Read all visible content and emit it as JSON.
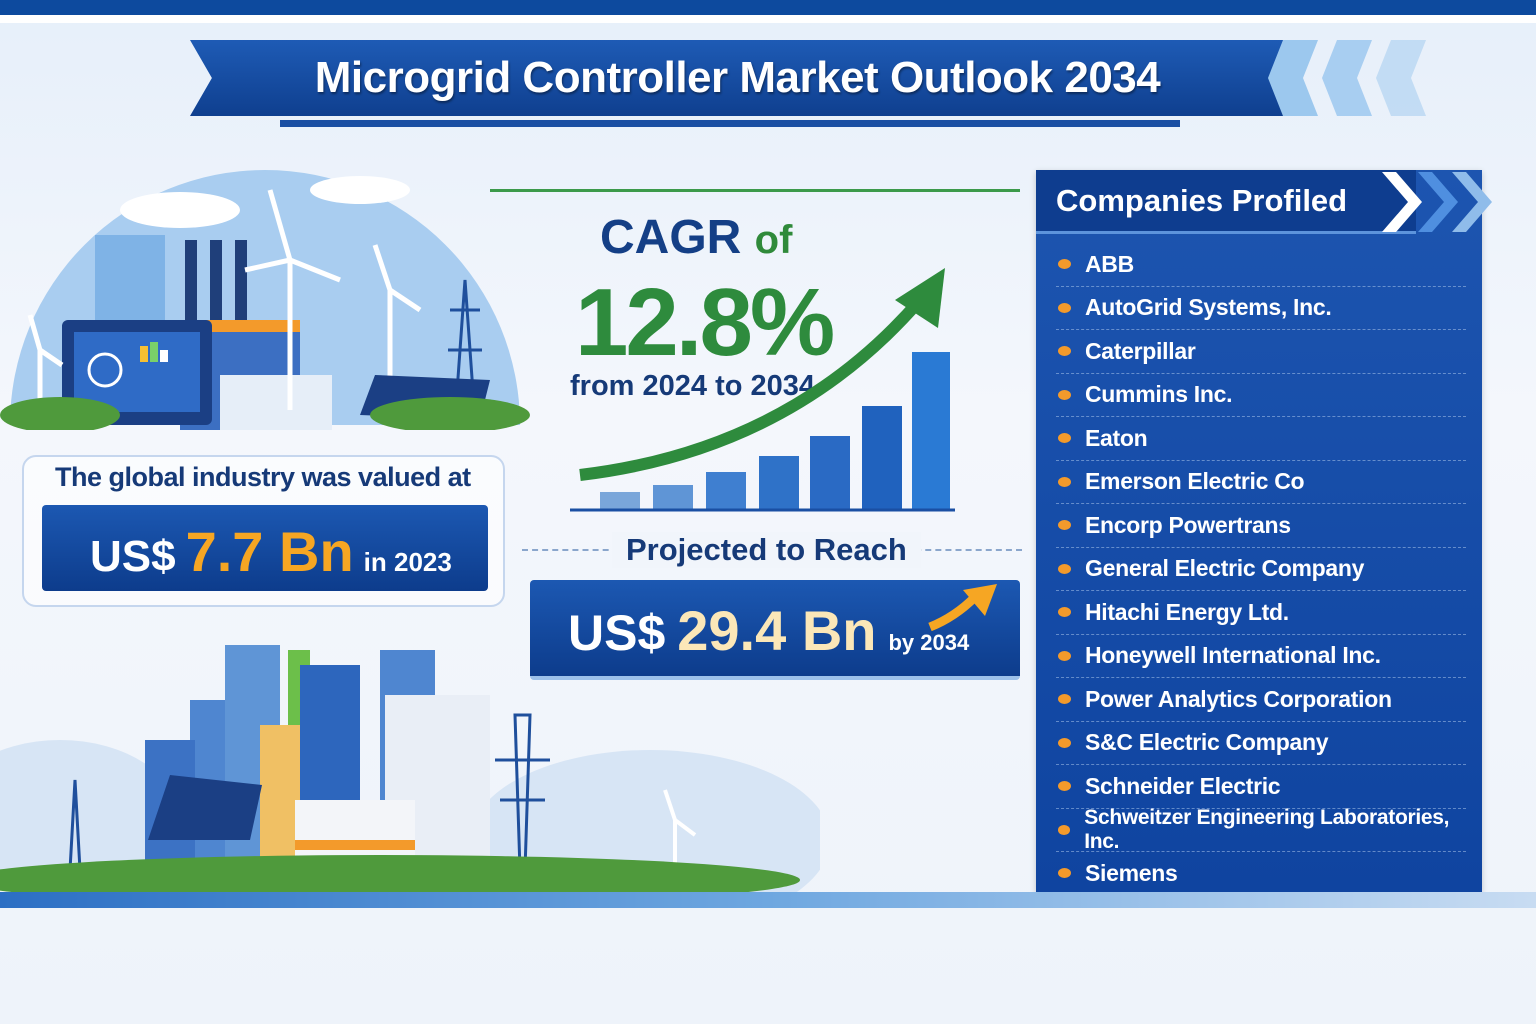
{
  "header": {
    "title": "Microgrid Controller Market Outlook 2034"
  },
  "valuation": {
    "label": "The global industry was valued at",
    "currency": "US$",
    "value": "7.7 Bn",
    "year": "in 2023"
  },
  "cagr": {
    "prefix": "CAGR",
    "of": "of",
    "value": "12.8%",
    "period": "from 2024 to 2034"
  },
  "projection": {
    "label": "Projected to Reach",
    "currency": "US$",
    "value": "29.4 Bn",
    "year": "by 2034"
  },
  "companies": {
    "title": "Companies Profiled",
    "items": [
      "ABB",
      "AutoGrid Systems, Inc.",
      "Caterpillar",
      "Cummins Inc.",
      "Eaton",
      "Emerson Electric Co",
      "Encorp Powertrans",
      "General Electric Company",
      "Hitachi Energy Ltd.",
      "Honeywell International Inc.",
      "Power Analytics Corporation",
      "S&C Electric Company",
      "Schneider Electric",
      "Schweitzer Engineering Laboratories, Inc.",
      "Siemens"
    ]
  },
  "colors": {
    "primary": "#0f3f8f",
    "accent": "#f6a623",
    "green": "#2e8b3d"
  }
}
